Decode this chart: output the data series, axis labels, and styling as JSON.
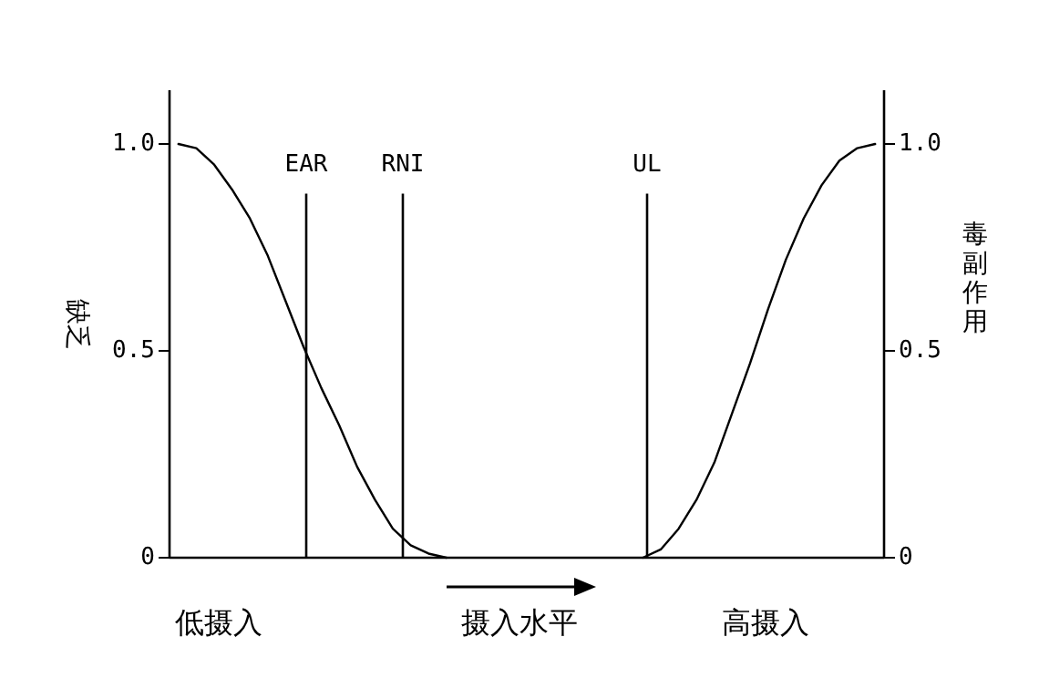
{
  "chart_data": {
    "type": "line",
    "ylabel": "缺乏",
    "y2label": "毒副作用",
    "categories": [
      null,
      null,
      null,
      null,
      null,
      null,
      null,
      null,
      null,
      null,
      null,
      null,
      null,
      null,
      null,
      null,
      null,
      null,
      null,
      null,
      null,
      null,
      null,
      null,
      null,
      null,
      null,
      null,
      null,
      null,
      null,
      null,
      null,
      null,
      null,
      null,
      null,
      null,
      null,
      null
    ],
    "ylim": [
      0,
      1.13
    ],
    "yticks": [
      0,
      0.5,
      {
        "value": 1,
        "label": "1.0"
      }
    ],
    "y2lim": [
      0,
      1.13
    ],
    "y2ticks": [
      0,
      0.5,
      {
        "value": 1,
        "label": "1.0"
      }
    ],
    "tick_labels": "y",
    "series": [
      {
        "color": "#000000",
        "values": [
          1.0,
          0.99,
          0.95,
          0.89,
          0.82,
          0.73,
          0.62,
          0.51,
          0.41,
          0.32,
          0.22,
          0.14,
          0.07,
          0.03,
          0.01,
          0,
          null,
          null,
          null,
          null,
          null,
          null,
          null,
          null,
          null,
          null,
          null,
          null,
          null,
          null,
          null,
          null,
          null,
          null,
          null,
          null,
          null,
          null,
          null,
          null
        ]
      },
      {
        "color": "#000000",
        "axis": "y2",
        "values": [
          null,
          null,
          null,
          null,
          null,
          null,
          null,
          null,
          null,
          null,
          null,
          null,
          null,
          null,
          null,
          null,
          null,
          null,
          null,
          null,
          null,
          null,
          null,
          null,
          null,
          null,
          0,
          0.02,
          0.07,
          0.14,
          0.23,
          0.35,
          0.47,
          0.6,
          0.72,
          0.82,
          0.9,
          0.96,
          0.99,
          1.0
        ]
      }
    ],
    "annotations": [
      "EAR",
      "RNI",
      "UL",
      "低摄入",
      "摄入水平",
      "高摄入"
    ]
  }
}
